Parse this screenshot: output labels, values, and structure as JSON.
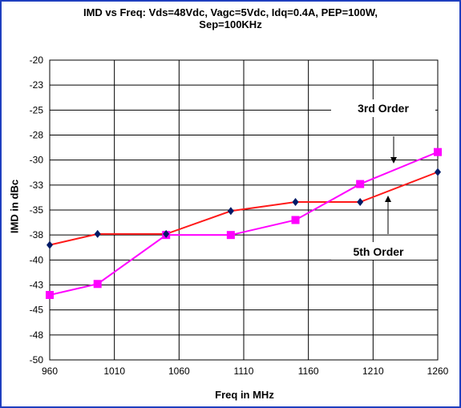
{
  "chart_data": {
    "type": "line",
    "title": "IMD vs Freq: Vds=48Vdc, Vagc=5Vdc, Idq=0.4A, PEP=100W,",
    "title_line2": "Sep=100KHz",
    "xlabel": "Freq in MHz",
    "ylabel": "IMD in dBc",
    "x_ticks": [
      "960",
      "1010",
      "1060",
      "1110",
      "1160",
      "1210",
      "1260"
    ],
    "y_ticks": [
      "-20",
      "-23",
      "-25",
      "-28",
      "-30",
      "-33",
      "-35",
      "-38",
      "-40",
      "-43",
      "-45",
      "-48",
      "-50"
    ],
    "xlim": [
      960,
      1260
    ],
    "ylim": [
      -50,
      -20
    ],
    "grid": true,
    "series": [
      {
        "name": "3rd Order",
        "color": "#ff00ff",
        "marker": "square",
        "x": [
          960,
          997,
          1050,
          1100,
          1150,
          1200,
          1260
        ],
        "y": [
          -43.5,
          -42.4,
          -37.5,
          -37.5,
          -36.0,
          -32.4,
          -29.2
        ]
      },
      {
        "name": "5th Order",
        "color": "#ff1a1a",
        "marker_color": "#001a66",
        "marker": "diamond",
        "x": [
          960,
          997,
          1050,
          1100,
          1150,
          1200,
          1260
        ],
        "y": [
          -38.5,
          -37.4,
          -37.4,
          -35.1,
          -34.2,
          -34.2,
          -31.2
        ]
      }
    ],
    "annotations": [
      "3rd Order",
      "5th Order"
    ]
  }
}
